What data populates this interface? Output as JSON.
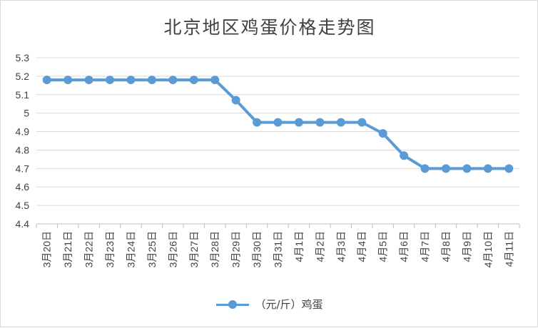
{
  "chart_data": {
    "type": "line",
    "title": "北京地区鸡蛋价格走势图",
    "categories": [
      "3月20日",
      "3月21日",
      "3月22日",
      "3月23日",
      "3月24日",
      "3月25日",
      "3月26日",
      "3月27日",
      "3月28日",
      "3月29日",
      "3月30日",
      "3月31日",
      "4月1日",
      "4月2日",
      "4月3日",
      "4月4日",
      "4月5日",
      "4月6日",
      "4月7日",
      "4月8日",
      "4月9日",
      "4月10日",
      "4月11日"
    ],
    "series": [
      {
        "name": "（元/斤）鸡蛋",
        "color": "#5b9bd5",
        "values": [
          5.18,
          5.18,
          5.18,
          5.18,
          5.18,
          5.18,
          5.18,
          5.18,
          5.18,
          5.07,
          4.95,
          4.95,
          4.95,
          4.95,
          4.95,
          4.95,
          4.89,
          4.77,
          4.7,
          4.7,
          4.7,
          4.7,
          4.7
        ]
      }
    ],
    "yticks": [
      "5.3",
      "5.2",
      "5.1",
      "5",
      "4.9",
      "4.8",
      "4.7",
      "4.6",
      "4.5",
      "4.4"
    ],
    "ylim": [
      4.4,
      5.3
    ],
    "grid": true,
    "legend": "bottom"
  }
}
